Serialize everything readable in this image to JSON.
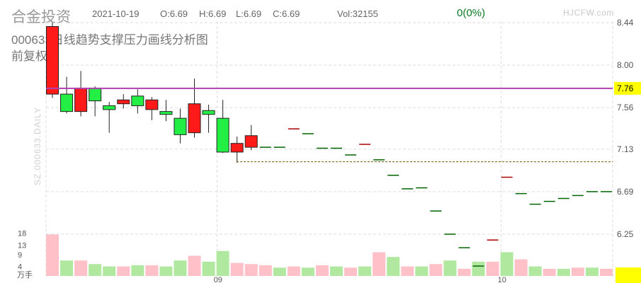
{
  "header": {
    "name": "合金投资",
    "date": "2021-10-19",
    "open": "O:6.69",
    "high": "H:6.69",
    "low": "L:6.69",
    "close": "C:6.69",
    "volume": "Vol:32155",
    "change": "0(0%)",
    "watermark": "HJCFW.com",
    "subtitle": "000633日线趋势支撑压力画线分析图",
    "adjust": "前复权",
    "vertical_watermark": "SZ.000633.DAILY"
  },
  "colors": {
    "up": "#ff1a1a",
    "down": "#22ee44",
    "vol_up": "#ffc0c8",
    "vol_down": "#b0e8a0",
    "resistance": "#b040b0",
    "support": "#7a5a00",
    "grid": "#dddddd",
    "label_bg": "#ffff00"
  },
  "chart_data": {
    "type": "candlestick",
    "price_ticks": [
      "8.44",
      "8.00",
      "7.56",
      "7.13",
      "6.69",
      "6.25"
    ],
    "volume_ticks": [
      "18",
      "13",
      "9",
      "4"
    ],
    "volume_unit": "万手",
    "x_labels": [
      {
        "i": 12,
        "label": "09"
      },
      {
        "i": 32,
        "label": "10"
      }
    ],
    "resistance_value": 7.76,
    "resistance_label": "7.76",
    "support_value": 7.0,
    "candles": [
      {
        "o": 7.7,
        "h": 8.44,
        "l": 7.66,
        "c": 8.4,
        "v": 17.5
      },
      {
        "o": 7.7,
        "h": 7.88,
        "l": 7.5,
        "c": 7.52,
        "v": 6.5
      },
      {
        "o": 7.52,
        "h": 7.94,
        "l": 7.47,
        "c": 7.76,
        "v": 6.5
      },
      {
        "o": 7.76,
        "h": 7.78,
        "l": 7.47,
        "c": 7.63,
        "v": 5.0
      },
      {
        "o": 7.58,
        "h": 7.62,
        "l": 7.3,
        "c": 7.54,
        "v": 4.0
      },
      {
        "o": 7.6,
        "h": 7.7,
        "l": 7.55,
        "c": 7.64,
        "v": 4.0
      },
      {
        "o": 7.68,
        "h": 7.75,
        "l": 7.5,
        "c": 7.58,
        "v": 4.5
      },
      {
        "o": 7.54,
        "h": 7.67,
        "l": 7.43,
        "c": 7.64,
        "v": 4.5
      },
      {
        "o": 7.52,
        "h": 7.64,
        "l": 7.42,
        "c": 7.49,
        "v": 4.0
      },
      {
        "o": 7.45,
        "h": 7.55,
        "l": 7.19,
        "c": 7.28,
        "v": 6.5
      },
      {
        "o": 7.3,
        "h": 7.86,
        "l": 7.25,
        "c": 7.6,
        "v": 8.5
      },
      {
        "o": 7.53,
        "h": 7.59,
        "l": 7.3,
        "c": 7.49,
        "v": 6.0
      },
      {
        "o": 7.45,
        "h": 7.64,
        "l": 7.09,
        "c": 7.1,
        "v": 10.5
      },
      {
        "o": 7.1,
        "h": 7.26,
        "l": 6.99,
        "c": 7.19,
        "v": 5.5
      },
      {
        "o": 7.15,
        "h": 7.38,
        "l": 7.12,
        "c": 7.27,
        "v": 5.0
      },
      {
        "o": 7.15,
        "h": 7.15,
        "l": 7.15,
        "c": 7.15,
        "v": 4.5
      },
      {
        "o": 7.15,
        "h": 7.15,
        "l": 7.15,
        "c": 7.15,
        "v": 3.5
      },
      {
        "o": 7.34,
        "h": 7.34,
        "l": 7.34,
        "c": 7.34,
        "v": 4.0
      },
      {
        "o": 7.29,
        "h": 7.29,
        "l": 7.29,
        "c": 7.29,
        "v": 3.5
      },
      {
        "o": 7.14,
        "h": 7.14,
        "l": 7.14,
        "c": 7.14,
        "v": 4.5
      },
      {
        "o": 7.14,
        "h": 7.14,
        "l": 7.14,
        "c": 7.14,
        "v": 4.0
      },
      {
        "o": 7.07,
        "h": 7.07,
        "l": 7.07,
        "c": 7.07,
        "v": 3.5
      },
      {
        "o": 7.18,
        "h": 7.18,
        "l": 7.18,
        "c": 7.18,
        "v": 4.0
      },
      {
        "o": 7.02,
        "h": 7.02,
        "l": 7.02,
        "c": 7.02,
        "v": 10.0
      },
      {
        "o": 6.86,
        "h": 6.86,
        "l": 6.86,
        "c": 6.86,
        "v": 8.0
      },
      {
        "o": 6.72,
        "h": 6.72,
        "l": 6.72,
        "c": 6.72,
        "v": 4.0
      },
      {
        "o": 6.73,
        "h": 6.73,
        "l": 6.73,
        "c": 6.73,
        "v": 4.0
      },
      {
        "o": 6.49,
        "h": 6.49,
        "l": 6.49,
        "c": 6.49,
        "v": 5.0
      },
      {
        "o": 6.25,
        "h": 6.25,
        "l": 6.25,
        "c": 6.25,
        "v": 6.5
      },
      {
        "o": 6.11,
        "h": 6.11,
        "l": 6.11,
        "c": 6.11,
        "v": 3.0
      },
      {
        "o": 5.92,
        "h": 5.92,
        "l": 5.92,
        "c": 5.92,
        "v": 6.0
      },
      {
        "o": 6.19,
        "h": 6.19,
        "l": 6.19,
        "c": 6.19,
        "v": 6.0
      },
      {
        "o": 6.84,
        "h": 6.84,
        "l": 6.84,
        "c": 6.84,
        "v": 10.0
      },
      {
        "o": 6.67,
        "h": 6.67,
        "l": 6.67,
        "c": 6.67,
        "v": 7.0
      },
      {
        "o": 6.56,
        "h": 6.56,
        "l": 6.56,
        "c": 6.56,
        "v": 4.0
      },
      {
        "o": 6.59,
        "h": 6.59,
        "l": 6.59,
        "c": 6.59,
        "v": 3.0
      },
      {
        "o": 6.62,
        "h": 6.62,
        "l": 6.62,
        "c": 6.62,
        "v": 3.0
      },
      {
        "o": 6.65,
        "h": 6.65,
        "l": 6.65,
        "c": 6.65,
        "v": 3.5
      },
      {
        "o": 6.69,
        "h": 6.69,
        "l": 6.69,
        "c": 6.69,
        "v": 3.5
      },
      {
        "o": 6.69,
        "h": 6.69,
        "l": 6.69,
        "c": 6.69,
        "v": 3.0
      }
    ]
  }
}
